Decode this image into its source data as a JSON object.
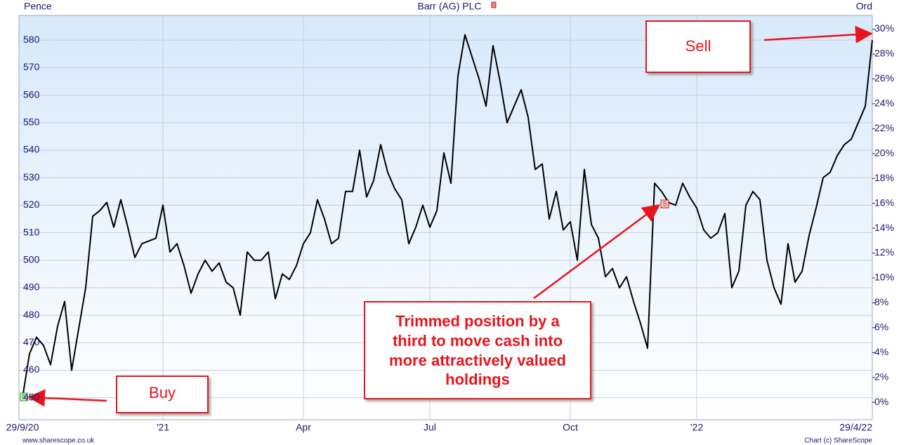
{
  "chart_data": {
    "type": "line",
    "title": "Barr (AG) PLC",
    "y_label": "Pence",
    "y2_label": "Ord",
    "categories": [
      "29/9/20",
      null,
      null,
      null,
      null,
      null,
      null,
      null,
      null,
      null,
      null,
      null,
      null,
      null,
      null,
      null,
      null,
      null,
      null,
      null,
      "'21",
      null,
      null,
      null,
      null,
      null,
      null,
      null,
      null,
      null,
      null,
      null,
      null,
      null,
      null,
      null,
      null,
      null,
      null,
      null,
      "Apr",
      null,
      null,
      null,
      null,
      null,
      null,
      null,
      null,
      null,
      null,
      null,
      null,
      null,
      null,
      null,
      null,
      null,
      "Jul",
      null,
      null,
      null,
      null,
      null,
      null,
      null,
      null,
      null,
      null,
      null,
      null,
      null,
      null,
      null,
      null,
      null,
      null,
      null,
      "Oct",
      null,
      null,
      null,
      null,
      null,
      null,
      null,
      null,
      null,
      null,
      null,
      null,
      null,
      null,
      null,
      null,
      null,
      "'22",
      null,
      null,
      null,
      null,
      null,
      null,
      null,
      null,
      null,
      null,
      null,
      null,
      null,
      null,
      null,
      null,
      null,
      null,
      null,
      null,
      null,
      null,
      null,
      null,
      "29/4/22"
    ],
    "values": [
      450,
      466,
      472,
      469,
      462,
      476,
      485,
      460,
      475,
      490,
      516,
      518,
      521,
      512,
      522,
      512,
      501,
      506,
      507,
      508,
      520,
      503,
      506,
      498,
      488,
      495,
      500,
      496,
      499,
      492,
      490,
      480,
      503,
      500,
      500,
      503,
      486,
      495,
      493,
      498,
      506,
      510,
      522,
      515,
      506,
      508,
      525,
      525,
      540,
      523,
      529,
      542,
      532,
      526,
      522,
      506,
      512,
      520,
      512,
      518,
      539,
      528,
      567,
      582,
      574,
      566,
      556,
      578,
      565,
      550,
      556,
      562,
      552,
      533,
      535,
      515,
      525,
      511,
      514,
      500,
      533,
      513,
      508,
      494,
      497,
      490,
      494,
      485,
      477,
      468,
      528,
      525,
      521,
      520,
      528,
      523,
      519,
      511,
      508,
      510,
      517,
      490,
      496,
      520,
      525,
      522,
      500,
      490,
      484,
      506,
      492,
      496,
      509,
      519,
      530,
      532,
      538,
      542,
      544,
      550,
      556,
      580
    ],
    "color": "#000000",
    "ylim": [
      442,
      589
    ],
    "yticks": [
      450,
      460,
      470,
      480,
      490,
      500,
      510,
      520,
      530,
      540,
      550,
      560,
      570,
      580
    ],
    "y2lim": [
      -1.4,
      31.1
    ],
    "y2ticks": [
      {
        "value": 0,
        "label": "0%"
      },
      {
        "value": 2,
        "label": "2%"
      },
      {
        "value": 4,
        "label": "4%"
      },
      {
        "value": 6,
        "label": "6%"
      },
      {
        "value": 8,
        "label": "8%"
      },
      {
        "value": 10,
        "label": "10%"
      },
      {
        "value": 12,
        "label": "12%"
      },
      {
        "value": 14,
        "label": "14%"
      },
      {
        "value": 16,
        "label": "16%"
      },
      {
        "value": 18,
        "label": "18%"
      },
      {
        "value": 20,
        "label": "20%"
      },
      {
        "value": 22,
        "label": "22%"
      },
      {
        "value": 24,
        "label": "24%"
      },
      {
        "value": 26,
        "label": "26%"
      },
      {
        "value": 28,
        "label": "28%"
      },
      {
        "value": 30,
        "label": "30%"
      }
    ],
    "grid": true,
    "trade_marks": [
      "B",
      "S"
    ],
    "annotations": {
      "sell": "Sell",
      "buy": "Buy",
      "trim": [
        "Trimmed position by a",
        "third to move cash into",
        "more attractively valued",
        "holdings"
      ]
    },
    "footer_left": "www.sharescope.co.uk",
    "footer_right": "Chart (c) ShareScope"
  }
}
